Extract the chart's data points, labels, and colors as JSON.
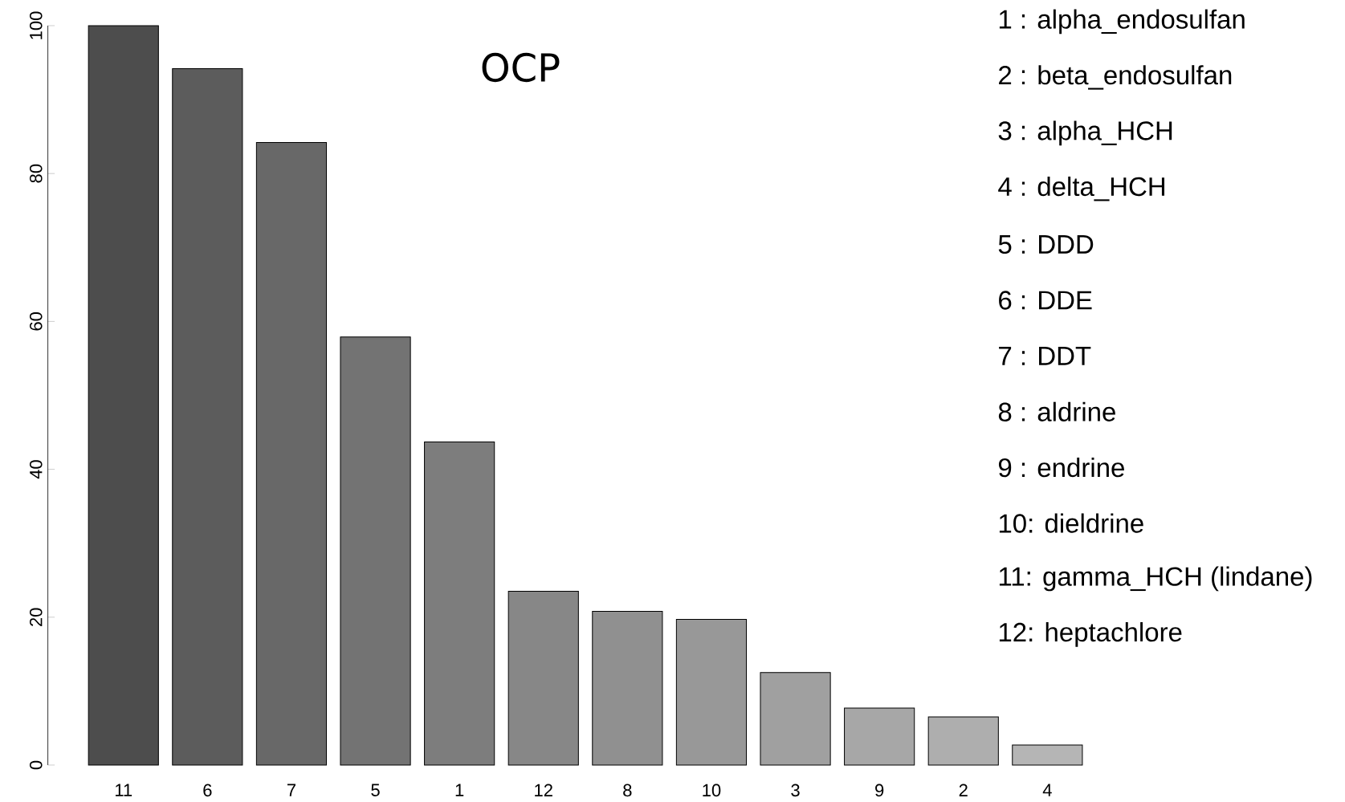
{
  "chart_data": {
    "type": "bar",
    "title": "OCP",
    "categories": [
      "11",
      "6",
      "7",
      "5",
      "1",
      "12",
      "8",
      "10",
      "3",
      "9",
      "2",
      "4"
    ],
    "values": [
      100,
      94.2,
      84.2,
      57.9,
      43.7,
      23.5,
      20.8,
      19.7,
      12.5,
      7.7,
      6.5,
      2.7
    ],
    "colors": [
      "#4d4d4d",
      "#5c5c5c",
      "#686868",
      "#737373",
      "#7d7d7d",
      "#878787",
      "#909090",
      "#989898",
      "#a0a0a0",
      "#a7a7a7",
      "#aeaeae",
      "#b5b5b5"
    ],
    "ylim": [
      0,
      100
    ],
    "yticks": [
      0,
      20,
      40,
      60,
      80,
      100
    ],
    "grid": false,
    "annotations": [
      "1 : alpha_endosulfan",
      "2 : beta_endosulfan",
      "3 : alpha_HCH",
      "4 : delta_HCH",
      "5 : DDD",
      "6 : DDE",
      "7 : DDT",
      "8 : aldrine",
      "9 : endrine",
      "10: dieldrine",
      "11: gamma_HCH (lindane)",
      "12: heptachlore"
    ]
  }
}
